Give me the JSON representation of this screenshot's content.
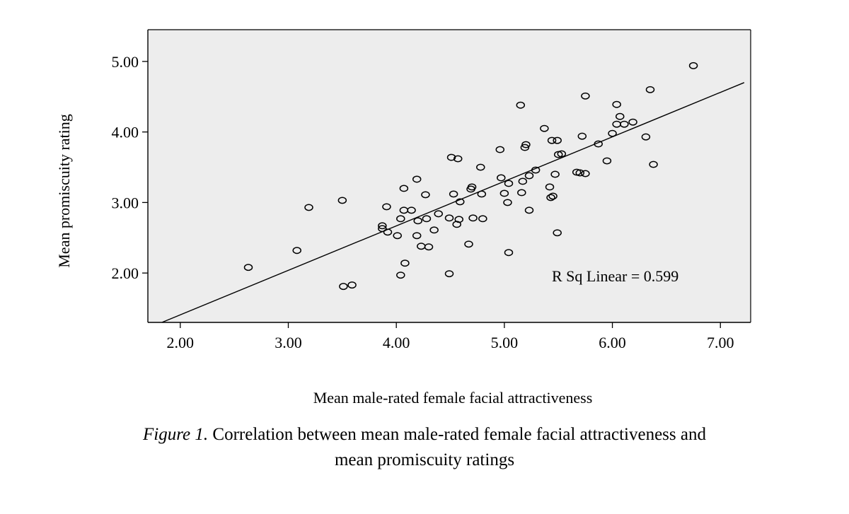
{
  "chart_data": {
    "type": "scatter",
    "title": "",
    "xlabel": "Mean male-rated female facial attractiveness",
    "ylabel": "Mean promiscuity rating",
    "xlim": [
      1.7,
      7.28
    ],
    "ylim": [
      1.3,
      5.45
    ],
    "x_ticks": [
      2,
      3,
      4,
      5,
      6,
      7
    ],
    "x_tick_labels": [
      "2.00",
      "3.00",
      "4.00",
      "5.00",
      "6.00",
      "7.00"
    ],
    "y_ticks": [
      2,
      3,
      4,
      5
    ],
    "y_tick_labels": [
      "2.00",
      "3.00",
      "4.00",
      "5.00"
    ],
    "grid": false,
    "plot_background": "#ededed",
    "fit_line": {
      "x": [
        1.83,
        7.22
      ],
      "y": [
        1.3,
        4.7
      ]
    },
    "annotation": "R Sq Linear = 0.599",
    "x": [
      2.63,
      3.08,
      3.19,
      3.5,
      3.51,
      3.59,
      3.87,
      3.87,
      3.91,
      3.92,
      4.01,
      4.04,
      4.04,
      4.07,
      4.07,
      4.08,
      4.14,
      4.19,
      4.19,
      4.2,
      4.23,
      4.27,
      4.28,
      4.3,
      4.35,
      4.39,
      4.49,
      4.49,
      4.51,
      4.53,
      4.56,
      4.57,
      4.58,
      4.59,
      4.67,
      4.69,
      4.7,
      4.71,
      4.78,
      4.79,
      4.8,
      4.96,
      4.97,
      5.0,
      5.03,
      5.04,
      5.04,
      5.15,
      5.16,
      5.17,
      5.19,
      5.2,
      5.23,
      5.23,
      5.29,
      5.37,
      5.42,
      5.43,
      5.44,
      5.45,
      5.47,
      5.49,
      5.49,
      5.5,
      5.53,
      5.67,
      5.7,
      5.72,
      5.75,
      5.75,
      5.87,
      5.95,
      6.0,
      6.04,
      6.04,
      6.07,
      6.11,
      6.19,
      6.31,
      6.35,
      6.38,
      6.75
    ],
    "y": [
      2.08,
      2.32,
      2.93,
      3.03,
      1.81,
      1.83,
      2.67,
      2.63,
      2.94,
      2.58,
      2.53,
      1.97,
      2.77,
      2.89,
      3.2,
      2.14,
      2.89,
      3.33,
      2.53,
      2.74,
      2.38,
      3.11,
      2.77,
      2.37,
      2.61,
      2.84,
      2.78,
      1.99,
      3.64,
      3.12,
      2.69,
      3.62,
      2.76,
      3.01,
      2.41,
      3.19,
      3.22,
      2.78,
      3.5,
      3.12,
      2.77,
      3.75,
      3.35,
      3.13,
      3.0,
      3.27,
      2.29,
      4.38,
      3.14,
      3.3,
      3.78,
      3.82,
      2.89,
      3.38,
      3.46,
      4.05,
      3.22,
      3.07,
      3.88,
      3.09,
      3.4,
      3.88,
      2.57,
      3.68,
      3.69,
      3.43,
      3.42,
      3.94,
      4.51,
      3.41,
      3.83,
      3.59,
      3.98,
      4.39,
      4.11,
      4.22,
      4.11,
      4.14,
      3.93,
      4.6,
      3.54,
      4.94
    ]
  },
  "caption": {
    "label": "Figure 1.",
    "line1": " Correlation between mean male-rated female facial attractiveness and",
    "line2": "mean promiscuity ratings"
  }
}
